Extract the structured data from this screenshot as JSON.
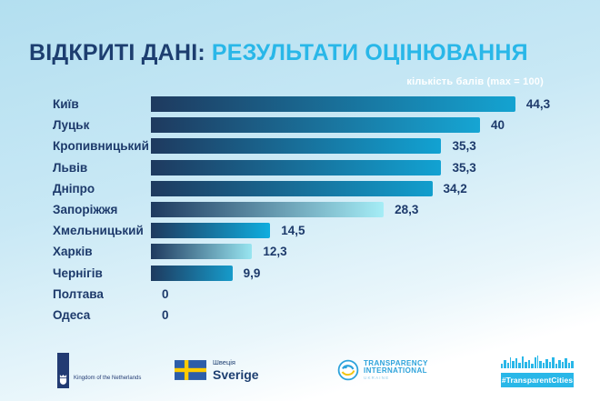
{
  "header": {
    "title_dark": "ВІДКРИТІ ДАНІ:",
    "title_accent": "РЕЗУЛЬТАТИ ОЦІНЮВАННЯ",
    "axis_note": "кількість балів (max = 100)"
  },
  "chart_data": {
    "type": "bar",
    "orientation": "horizontal",
    "title": "ВІДКРИТІ ДАНІ: РЕЗУЛЬТАТИ ОЦІНЮВАННЯ",
    "note": "кількість балів (max = 100)",
    "max_score": 100,
    "categories": [
      "Київ",
      "Луцьк",
      "Кропивницький",
      "Львів",
      "Дніпро",
      "Запоріжжя",
      "Хмельницький",
      "Харків",
      "Чернігів",
      "Полтава",
      "Одеса"
    ],
    "values": [
      44.3,
      40,
      35.3,
      35.3,
      34.2,
      28.3,
      14.5,
      12.3,
      9.9,
      0,
      0
    ],
    "value_labels": [
      "44,3",
      "40",
      "35,3",
      "35,3",
      "34,2",
      "28,3",
      "14,5",
      "12,3",
      "9,9",
      "0",
      "0"
    ],
    "bar_gradient_start": "#1e3a5f",
    "bar_end_colors": [
      "#14a3d1",
      "#16a5d3",
      "#12a2d2",
      "#12a2d2",
      "#119ecd",
      "#a5edf6",
      "#0fadde",
      "#98e5f0",
      "#169bca",
      "#169bca",
      "#169bca"
    ],
    "legend": null,
    "grid": false
  },
  "footer": {
    "netherlands": {
      "label": "Kingdom of the Netherlands"
    },
    "sweden": {
      "line1": "Швеція",
      "line2": "Sverige"
    },
    "transparency": {
      "line1": "TRANSPARENCY",
      "line2": "INTERNATIONAL",
      "line3": "UKRAINE"
    },
    "transparent_cities": {
      "label": "#TransparentCities"
    }
  },
  "colors": {
    "title_dark": "#1d3e70",
    "title_accent": "#29b7e8",
    "text": "#1d3a6b",
    "note": "#ffffff",
    "cyan_brand": "#29b7e8",
    "navy_nl": "#223b73",
    "sweden_blue": "#2d5da9",
    "sweden_yellow": "#fecb00",
    "ti_blue": "#2ea3db"
  }
}
